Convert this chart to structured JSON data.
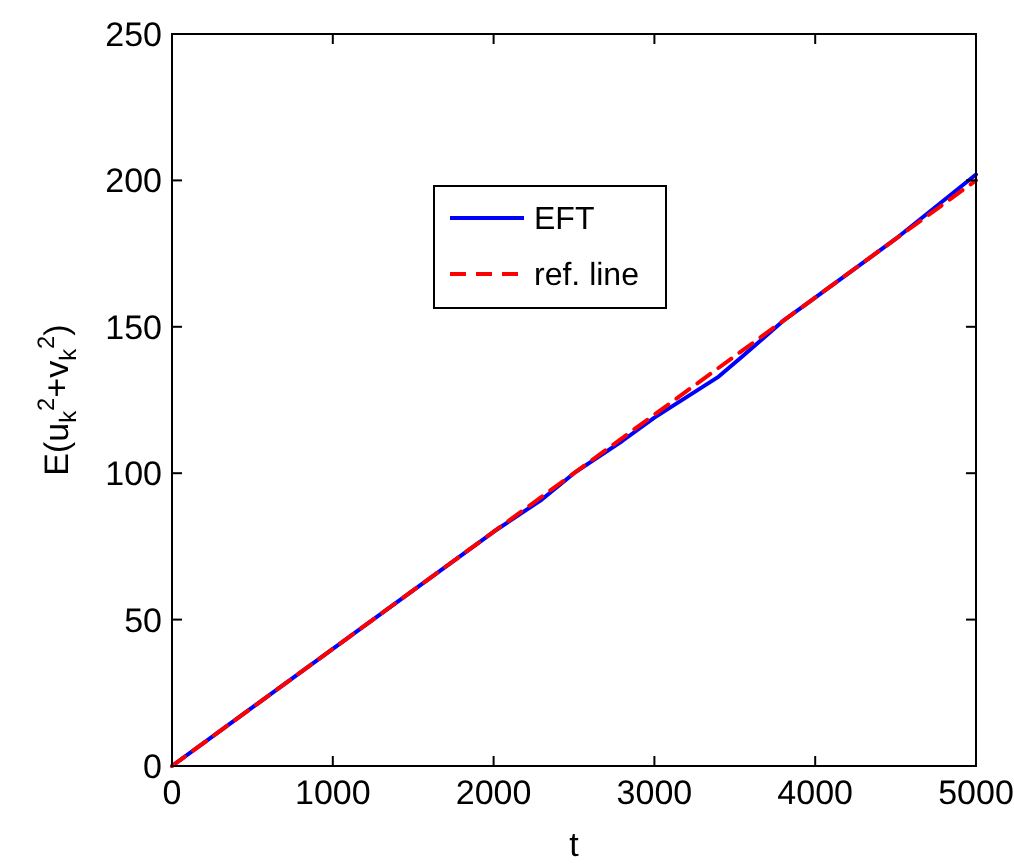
{
  "chart_data": {
    "type": "line",
    "xlabel": "t",
    "ylabel": "E(u$_{k}$$^{2}$+v$_{k}$$^{2}$)",
    "xlim": [
      0,
      5000
    ],
    "ylim": [
      0,
      250
    ],
    "xticks": [
      0,
      1000,
      2000,
      3000,
      4000,
      5000
    ],
    "yticks": [
      0,
      50,
      100,
      150,
      200,
      250
    ],
    "grid": false,
    "legend": "top",
    "marker": "none",
    "series": [
      {
        "name": "EFT",
        "color": "#0000ff",
        "line_style": "solid",
        "x": [
          0,
          500,
          1000,
          1500,
          2000,
          2300,
          2500,
          2800,
          3000,
          3200,
          3400,
          3550,
          3800,
          4000,
          4500,
          5000
        ],
        "values": [
          0,
          20,
          40,
          60,
          80,
          91,
          100,
          111,
          119,
          126,
          133,
          140,
          152,
          160,
          180,
          202
        ]
      },
      {
        "name": "ref. line",
        "color": "#ff0000",
        "line_style": "dashed",
        "x": [
          0,
          5000
        ],
        "values": [
          0,
          200
        ]
      }
    ]
  }
}
